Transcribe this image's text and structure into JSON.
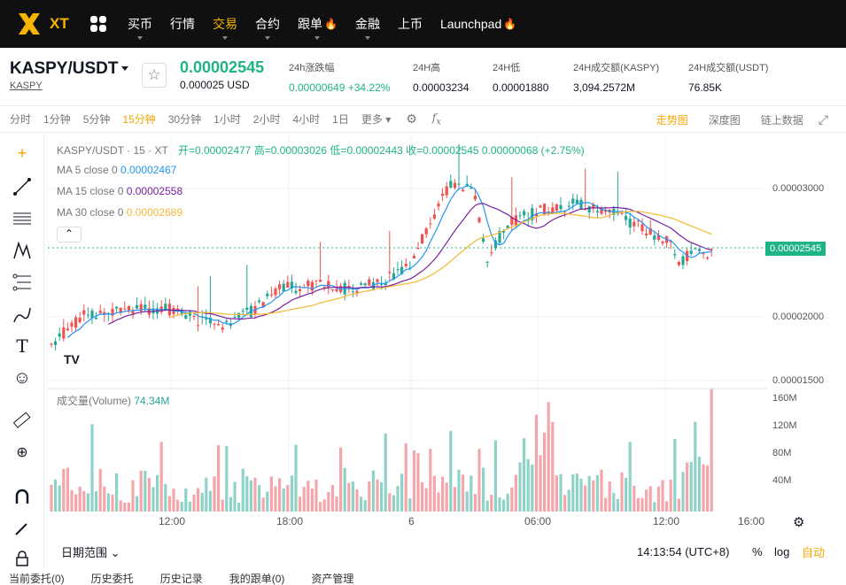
{
  "nav": {
    "logo_text": "XT",
    "items": [
      "买币",
      "行情",
      "交易",
      "合约",
      "跟单",
      "金融",
      "上币",
      "Launchpad"
    ],
    "active": "交易",
    "colors": {
      "bg": "#101010",
      "accent": "#f7b500"
    }
  },
  "ticker": {
    "pair": "KASPY/USDT",
    "base": "KASPY",
    "last_price": "0.00002545",
    "last_price_usd": "0.000025 USD",
    "change_label": "24h涨跌幅",
    "change_value": "0.00000649 +34.22%",
    "high_label": "24H高",
    "high_value": "0.00003234",
    "low_label": "24H低",
    "low_value": "0.00001880",
    "vol_base_label": "24H成交额(KASPY)",
    "vol_base_value": "3,094.2572M",
    "vol_quote_label": "24H成交额(USDT)",
    "vol_quote_value": "76.85K"
  },
  "intervals": [
    "分时",
    "1分钟",
    "5分钟",
    "15分钟",
    "30分钟",
    "1小时",
    "2小时",
    "4小时",
    "1日",
    "更多"
  ],
  "selected_interval": "15分钟",
  "view_tabs": [
    "走势图",
    "深度图",
    "链上数据"
  ],
  "active_view": "走势图",
  "legend": {
    "title": "KASPY/USDT · 15 · XT",
    "ohlc": "开=0.00002477 高=0.00003026 低=0.00002443 收=0.00002545 0.00000068 (+2.75%)",
    "ma5_label": "MA 5 close 0",
    "ma5_value": "0.00002467",
    "ma15_label": "MA 15 close 0",
    "ma15_value": "0.00002558",
    "ma30_label": "MA 30 close 0",
    "ma30_value": "0.00002689",
    "volume_label": "成交量(Volume)",
    "volume_value": "74.34M"
  },
  "price_axis": [
    "0.00003000",
    "0.00002000",
    "0.00001500"
  ],
  "current_price_tag": "0.00002545",
  "volume_axis": [
    "160M",
    "120M",
    "80M",
    "40M"
  ],
  "time_axis": [
    "12:00",
    "18:00",
    "6",
    "06:00",
    "12:00",
    "16:00"
  ],
  "bottom": {
    "date_range": "日期范围",
    "clock": "14:13:54 (UTC+8)",
    "pct": "%",
    "log": "log",
    "auto": "自动"
  },
  "order_tabs": [
    "当前委托(0)",
    "历史委托",
    "历史记录",
    "我的跟单(0)",
    "资产管理"
  ],
  "colors": {
    "up": "#26a69a",
    "down": "#ef5350",
    "ma5": "#2196f3",
    "ma15": "#7b1fa2",
    "ma30": "#f5b835"
  }
}
